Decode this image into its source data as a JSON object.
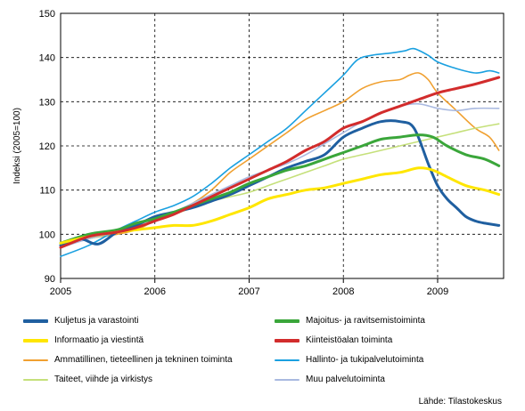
{
  "chart_data": {
    "type": "line",
    "ylabel": "Indeksi (2005=100)",
    "ylim": [
      90,
      150
    ],
    "yticks": [
      90,
      100,
      110,
      120,
      130,
      140,
      150
    ],
    "xlim": [
      2005,
      2009.7
    ],
    "xticks": [
      2005,
      2006,
      2007,
      2008,
      2009
    ],
    "xtick_labels": [
      "2005",
      "2006",
      "2007",
      "2008",
      "2009"
    ],
    "grid": "dashed",
    "source": "Lähde: Tilastokeskus",
    "series": [
      {
        "name": "Kuljetus ja varastointi",
        "color": "#1f5fa0",
        "width": 3,
        "points": [
          [
            2005,
            97.5
          ],
          [
            2005.2,
            99
          ],
          [
            2005.4,
            97.8
          ],
          [
            2005.6,
            100.5
          ],
          [
            2005.8,
            102
          ],
          [
            2006,
            104
          ],
          [
            2006.2,
            105
          ],
          [
            2006.4,
            106
          ],
          [
            2006.6,
            107.5
          ],
          [
            2006.8,
            109
          ],
          [
            2007,
            111
          ],
          [
            2007.2,
            113
          ],
          [
            2007.4,
            115
          ],
          [
            2007.6,
            116.5
          ],
          [
            2007.8,
            118
          ],
          [
            2008,
            122
          ],
          [
            2008.2,
            124
          ],
          [
            2008.4,
            125.5
          ],
          [
            2008.6,
            125.5
          ],
          [
            2008.75,
            124
          ],
          [
            2008.9,
            116
          ],
          [
            2009,
            111
          ],
          [
            2009.1,
            108
          ],
          [
            2009.2,
            106
          ],
          [
            2009.3,
            104
          ],
          [
            2009.4,
            103
          ],
          [
            2009.5,
            102.5
          ],
          [
            2009.65,
            102
          ]
        ]
      },
      {
        "name": "Majoitus- ja ravitsemistoiminta",
        "color": "#3aa63a",
        "width": 3,
        "points": [
          [
            2005,
            98
          ],
          [
            2005.3,
            100
          ],
          [
            2005.6,
            101
          ],
          [
            2005.8,
            102.5
          ],
          [
            2006,
            103.5
          ],
          [
            2006.2,
            105
          ],
          [
            2006.4,
            106.5
          ],
          [
            2006.6,
            108
          ],
          [
            2006.8,
            109.5
          ],
          [
            2007,
            111.5
          ],
          [
            2007.2,
            113
          ],
          [
            2007.4,
            114.5
          ],
          [
            2007.6,
            115.5
          ],
          [
            2007.8,
            117
          ],
          [
            2008,
            118.5
          ],
          [
            2008.2,
            120
          ],
          [
            2008.4,
            121.5
          ],
          [
            2008.6,
            122
          ],
          [
            2008.8,
            122.5
          ],
          [
            2008.95,
            122
          ],
          [
            2009.1,
            120
          ],
          [
            2009.3,
            118
          ],
          [
            2009.5,
            117
          ],
          [
            2009.65,
            115.5
          ]
        ]
      },
      {
        "name": "Informaatio ja viestintä",
        "color": "#ffe600",
        "width": 3,
        "points": [
          [
            2005,
            98
          ],
          [
            2005.3,
            99.5
          ],
          [
            2005.6,
            100.5
          ],
          [
            2005.8,
            101
          ],
          [
            2006,
            101.5
          ],
          [
            2006.2,
            102
          ],
          [
            2006.4,
            102
          ],
          [
            2006.6,
            103
          ],
          [
            2006.8,
            104.5
          ],
          [
            2007,
            106
          ],
          [
            2007.2,
            108
          ],
          [
            2007.4,
            109
          ],
          [
            2007.6,
            110
          ],
          [
            2007.8,
            110.5
          ],
          [
            2008,
            111.5
          ],
          [
            2008.2,
            112.5
          ],
          [
            2008.4,
            113.5
          ],
          [
            2008.6,
            114
          ],
          [
            2008.8,
            115
          ],
          [
            2008.95,
            114.5
          ],
          [
            2009.1,
            113
          ],
          [
            2009.3,
            111
          ],
          [
            2009.5,
            110
          ],
          [
            2009.65,
            109
          ]
        ]
      },
      {
        "name": "Kiinteistöalan toiminta",
        "color": "#d22c2c",
        "width": 3,
        "points": [
          [
            2005,
            97
          ],
          [
            2005.3,
            99.5
          ],
          [
            2005.6,
            100.5
          ],
          [
            2005.8,
            101.5
          ],
          [
            2006,
            103
          ],
          [
            2006.2,
            104.5
          ],
          [
            2006.4,
            106.5
          ],
          [
            2006.6,
            108.5
          ],
          [
            2006.8,
            110.5
          ],
          [
            2007,
            112.5
          ],
          [
            2007.2,
            114.5
          ],
          [
            2007.4,
            116.5
          ],
          [
            2007.6,
            119
          ],
          [
            2007.8,
            121
          ],
          [
            2008,
            124
          ],
          [
            2008.2,
            125.5
          ],
          [
            2008.4,
            127.5
          ],
          [
            2008.6,
            129
          ],
          [
            2008.8,
            130.5
          ],
          [
            2009,
            132
          ],
          [
            2009.2,
            133
          ],
          [
            2009.4,
            134
          ],
          [
            2009.65,
            135.5
          ]
        ]
      },
      {
        "name": "Ammatillinen, tieteellinen ja tekninen toiminta",
        "color": "#f0a030",
        "width": 1.6,
        "points": [
          [
            2005,
            97
          ],
          [
            2005.3,
            99
          ],
          [
            2005.6,
            100
          ],
          [
            2005.8,
            101
          ],
          [
            2006,
            103
          ],
          [
            2006.2,
            105
          ],
          [
            2006.4,
            107
          ],
          [
            2006.6,
            110
          ],
          [
            2006.8,
            114
          ],
          [
            2007,
            117
          ],
          [
            2007.2,
            120
          ],
          [
            2007.4,
            123
          ],
          [
            2007.6,
            126
          ],
          [
            2007.8,
            128
          ],
          [
            2008,
            130
          ],
          [
            2008.2,
            133
          ],
          [
            2008.4,
            134.5
          ],
          [
            2008.6,
            135
          ],
          [
            2008.7,
            136
          ],
          [
            2008.8,
            136.5
          ],
          [
            2008.9,
            135
          ],
          [
            2009,
            132
          ],
          [
            2009.2,
            128
          ],
          [
            2009.4,
            124
          ],
          [
            2009.55,
            122
          ],
          [
            2009.65,
            119
          ]
        ]
      },
      {
        "name": "Hallinto- ja tukipalvelutoiminta",
        "color": "#1aa0e0",
        "width": 1.6,
        "points": [
          [
            2005,
            95
          ],
          [
            2005.3,
            97.5
          ],
          [
            2005.6,
            101
          ],
          [
            2005.8,
            103
          ],
          [
            2006,
            105
          ],
          [
            2006.2,
            106.5
          ],
          [
            2006.4,
            108.5
          ],
          [
            2006.6,
            111.5
          ],
          [
            2006.8,
            115
          ],
          [
            2007,
            118
          ],
          [
            2007.2,
            121
          ],
          [
            2007.4,
            124
          ],
          [
            2007.6,
            128
          ],
          [
            2007.8,
            132
          ],
          [
            2008,
            136
          ],
          [
            2008.15,
            139.5
          ],
          [
            2008.3,
            140.5
          ],
          [
            2008.5,
            141
          ],
          [
            2008.65,
            141.5
          ],
          [
            2008.75,
            142
          ],
          [
            2008.9,
            140.5
          ],
          [
            2009,
            139
          ],
          [
            2009.2,
            137.5
          ],
          [
            2009.4,
            136.5
          ],
          [
            2009.55,
            137
          ],
          [
            2009.65,
            136.5
          ]
        ]
      },
      {
        "name": "Taiteet, viihde ja virkistys",
        "color": "#c5e07a",
        "width": 1.6,
        "points": [
          [
            2005,
            98
          ],
          [
            2005.3,
            99
          ],
          [
            2005.6,
            100.5
          ],
          [
            2005.8,
            101.5
          ],
          [
            2006,
            103
          ],
          [
            2006.2,
            104.5
          ],
          [
            2006.4,
            106
          ],
          [
            2006.6,
            107.5
          ],
          [
            2006.8,
            108.5
          ],
          [
            2007,
            109.5
          ],
          [
            2007.2,
            111
          ],
          [
            2007.4,
            112.5
          ],
          [
            2007.6,
            114
          ],
          [
            2007.8,
            115.5
          ],
          [
            2008,
            117
          ],
          [
            2008.3,
            118.5
          ],
          [
            2008.6,
            120
          ],
          [
            2008.9,
            121.5
          ],
          [
            2009.2,
            123
          ],
          [
            2009.4,
            124
          ],
          [
            2009.65,
            125
          ]
        ]
      },
      {
        "name": "Muu palvelutoiminta",
        "color": "#a9b9e0",
        "width": 1.6,
        "points": [
          [
            2005,
            97
          ],
          [
            2005.3,
            99
          ],
          [
            2005.6,
            100.5
          ],
          [
            2005.8,
            102
          ],
          [
            2006,
            103.5
          ],
          [
            2006.2,
            105
          ],
          [
            2006.4,
            107
          ],
          [
            2006.6,
            109
          ],
          [
            2006.8,
            111
          ],
          [
            2007,
            113
          ],
          [
            2007.2,
            114.5
          ],
          [
            2007.4,
            116
          ],
          [
            2007.6,
            118
          ],
          [
            2007.8,
            120.5
          ],
          [
            2008,
            123
          ],
          [
            2008.2,
            125.5
          ],
          [
            2008.4,
            127.5
          ],
          [
            2008.6,
            129
          ],
          [
            2008.8,
            129.5
          ],
          [
            2009,
            128.5
          ],
          [
            2009.2,
            128
          ],
          [
            2009.4,
            128.5
          ],
          [
            2009.65,
            128.5
          ]
        ]
      }
    ],
    "legend_order": [
      [
        0,
        1
      ],
      [
        2,
        3
      ],
      [
        4,
        5
      ],
      [
        6,
        7
      ]
    ]
  }
}
